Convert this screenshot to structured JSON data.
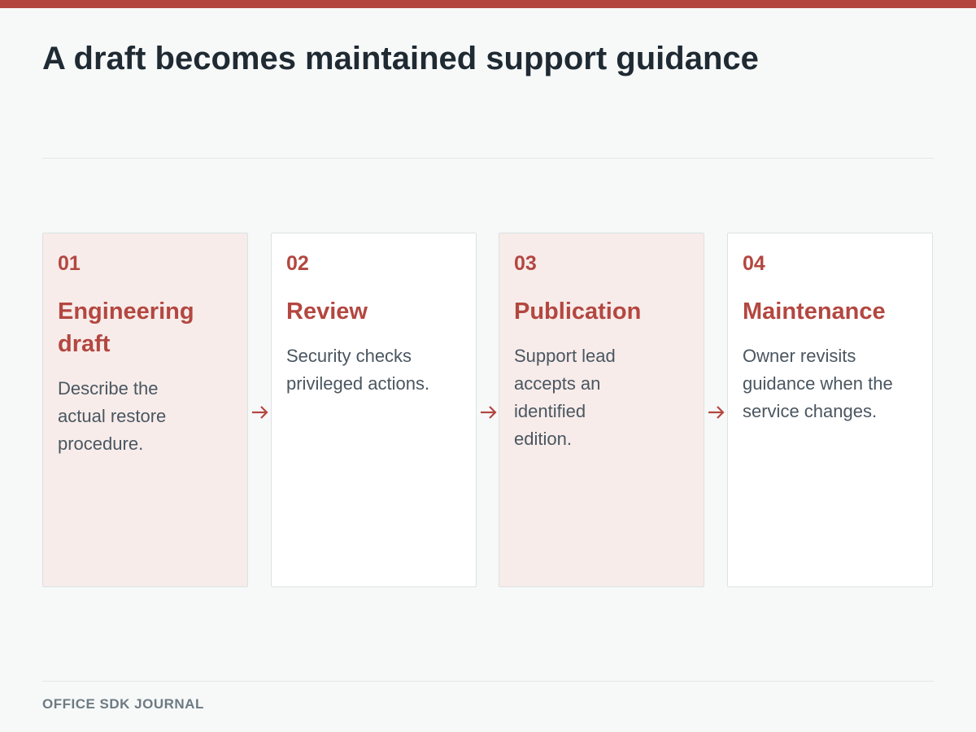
{
  "title": "A draft becomes maintained support guidance",
  "stages": [
    {
      "number": "01",
      "title": "Engineering draft",
      "description": "Describe the actual restore procedure."
    },
    {
      "number": "02",
      "title": "Review",
      "description": "Security checks privileged actions."
    },
    {
      "number": "03",
      "title": "Publication",
      "description": "Support lead accepts an identified edition."
    },
    {
      "number": "04",
      "title": "Maintenance",
      "description": "Owner revisits guidance when the service changes."
    }
  ],
  "footer": "OFFICE SDK JOURNAL",
  "colors": {
    "accent": "#b34740",
    "tinted_card": "#f7ecea",
    "plain_card": "#ffffff",
    "title_text": "#1f2a33",
    "body_text": "#4a5660"
  },
  "icons": {
    "connector": "arrow-right-icon"
  }
}
